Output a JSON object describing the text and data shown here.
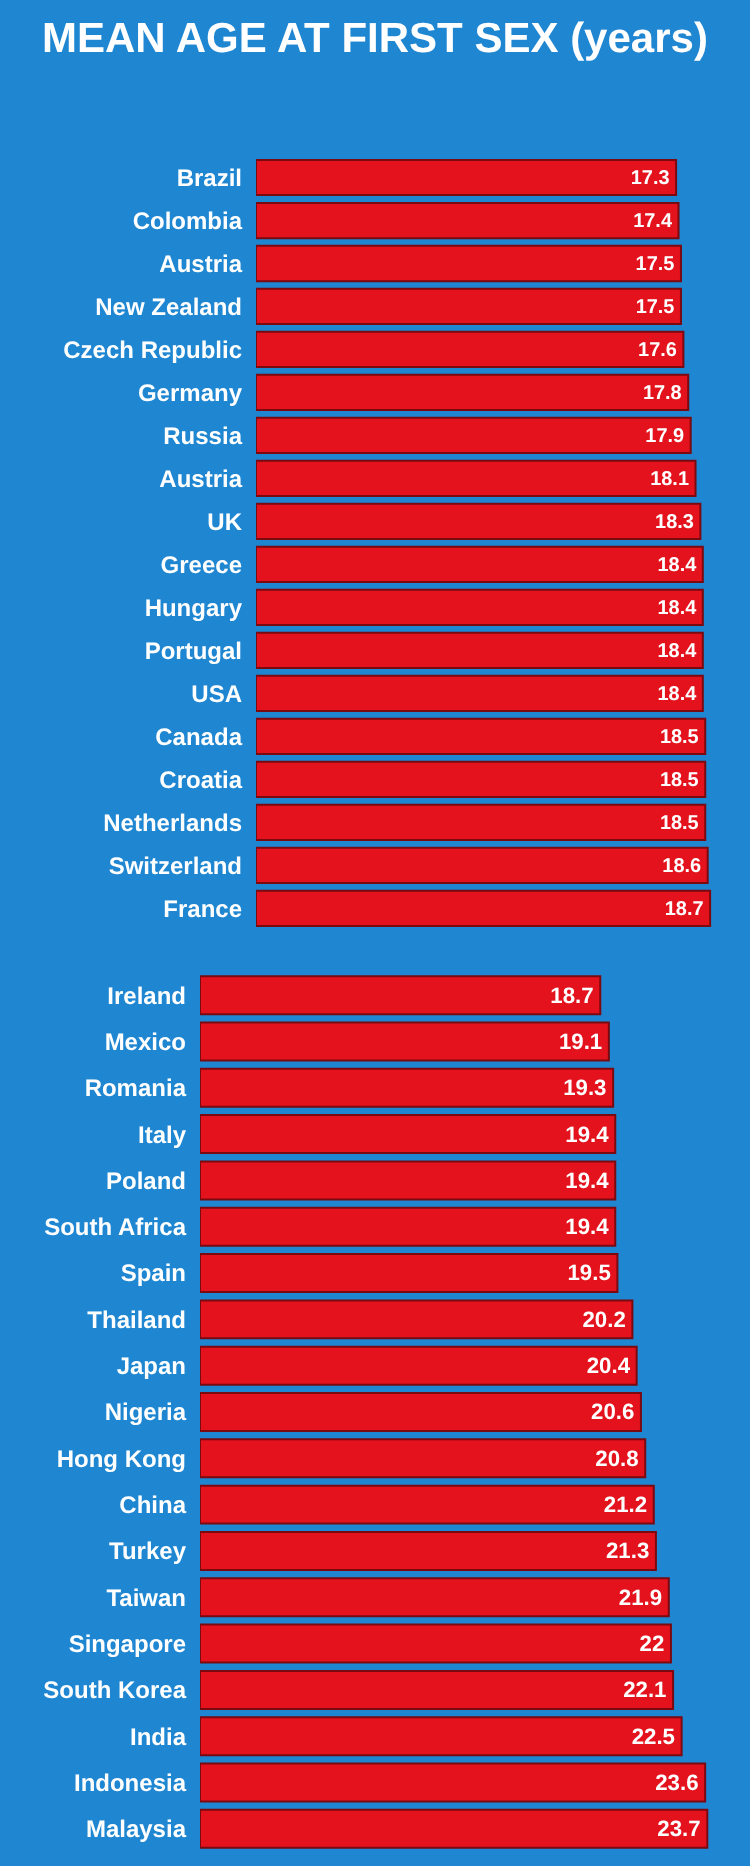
{
  "chart_data": [
    {
      "type": "bar",
      "orientation": "horizontal",
      "title": "MEAN AGE AT FIRST SEX (years)",
      "categories": [
        "Brazil",
        "Colombia",
        "Austria",
        "New Zealand",
        "Czech Republic",
        "Germany",
        "Russia",
        "Austria",
        "UK",
        "Greece",
        "Hungary",
        "Portugal",
        "USA",
        "Canada",
        "Croatia",
        "Netherlands",
        "Switzerland",
        "France"
      ],
      "values": [
        17.3,
        17.4,
        17.5,
        17.5,
        17.6,
        17.8,
        17.9,
        18.1,
        18.3,
        18.4,
        18.4,
        18.4,
        18.4,
        18.5,
        18.5,
        18.5,
        18.6,
        18.7
      ],
      "color": "#e3121c",
      "tick_labels": "y",
      "data_labels": true
    },
    {
      "type": "bar",
      "orientation": "horizontal",
      "categories": [
        "Ireland",
        "Mexico",
        "Romania",
        "Italy",
        "Poland",
        "South Africa",
        "Spain",
        "Thailand",
        "Japan",
        "Nigeria",
        "Hong Kong",
        "China",
        "Turkey",
        "Taiwan",
        "Singapore",
        "South Korea",
        "India",
        "Indonesia",
        "Malaysia"
      ],
      "values": [
        18.7,
        19.1,
        19.3,
        19.4,
        19.4,
        19.4,
        19.5,
        20.2,
        20.4,
        20.6,
        20.8,
        21.2,
        21.3,
        21.9,
        22,
        22.1,
        22.5,
        23.6,
        23.7
      ],
      "color": "#e3121c",
      "tick_labels": "y",
      "data_labels": true
    }
  ]
}
